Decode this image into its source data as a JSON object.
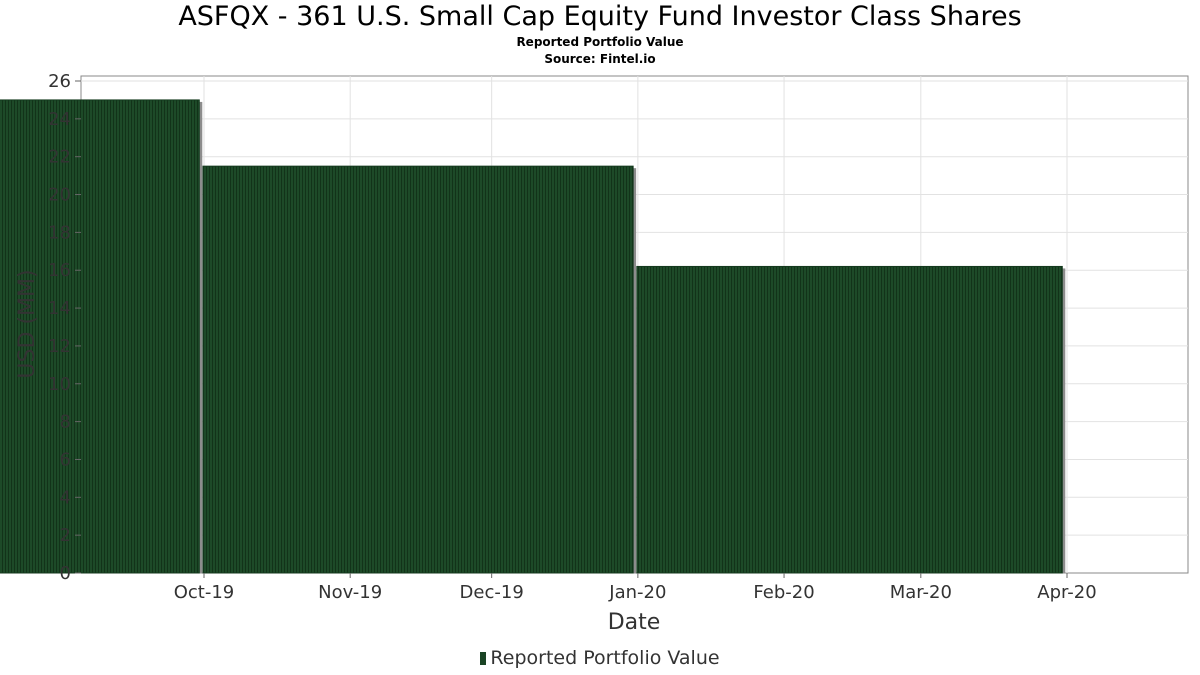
{
  "chart_data": {
    "type": "bar",
    "title": "ASFQX - 361 U.S. Small Cap Equity Fund Investor Class Shares",
    "subtitle": "Reported Portfolio Value",
    "source": "Source: Fintel.io",
    "xlabel": "Date",
    "ylabel": "USD (MM)",
    "x_ticks": [
      "Oct-19",
      "Nov-19",
      "Dec-19",
      "Jan-20",
      "Feb-20",
      "Mar-20",
      "Apr-20"
    ],
    "y_ticks": [
      0,
      2,
      4,
      6,
      8,
      10,
      12,
      14,
      16,
      18,
      20,
      22,
      24,
      26
    ],
    "ylim": [
      0,
      26
    ],
    "grid": true,
    "legend_position": "bottom",
    "series": [
      {
        "name": "Reported Portfolio Value",
        "color": "#1a4424",
        "points": [
          {
            "date": "2019-09-30",
            "value": 25.0
          },
          {
            "date": "2019-12-31",
            "value": 21.5
          },
          {
            "date": "2020-03-31",
            "value": 16.2
          }
        ]
      }
    ]
  }
}
